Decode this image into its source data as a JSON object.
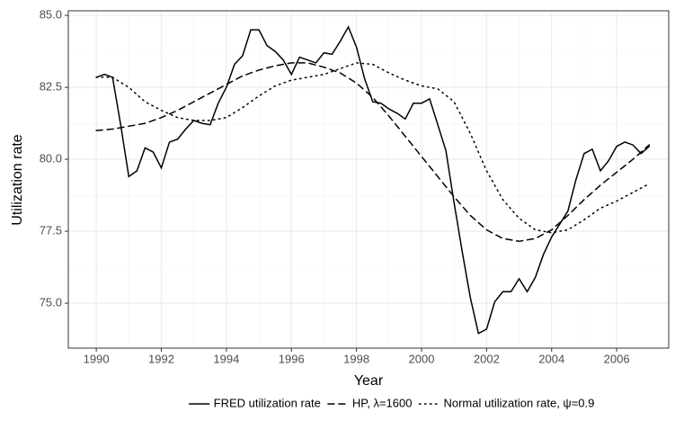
{
  "chart_data": {
    "type": "line",
    "x_label": "Year",
    "y_label": "Utilization rate",
    "xlim": [
      1989.14,
      2007.6
    ],
    "ylim": [
      73.44,
      85.16
    ],
    "xticks": [
      1990,
      1992,
      1994,
      1996,
      1998,
      2000,
      2002,
      2004,
      2006
    ],
    "yticks": [
      {
        "value": 75,
        "label": "75.0"
      },
      77.5,
      {
        "value": 80,
        "label": "80.0"
      },
      82.5,
      {
        "value": 85,
        "label": "85.0"
      }
    ],
    "grid": true,
    "legend": "bottom",
    "series": [
      {
        "name": "FRED utilization rate",
        "color": "#000000",
        "dash": "solid",
        "x": [
          1990,
          1990.25,
          1990.5,
          1990.75,
          1991,
          1991.25,
          1991.5,
          1991.75,
          1992,
          1992.25,
          1992.5,
          1992.75,
          1993,
          1993.25,
          1993.5,
          1993.75,
          1994,
          1994.25,
          1994.5,
          1994.75,
          1995,
          1995.25,
          1995.5,
          1995.75,
          1996,
          1996.25,
          1996.5,
          1996.75,
          1997,
          1997.25,
          1997.5,
          1997.75,
          1998,
          1998.25,
          1998.5,
          1998.75,
          1999,
          1999.25,
          1999.5,
          1999.75,
          2000,
          2000.25,
          2000.5,
          2000.75,
          2001,
          2001.25,
          2001.5,
          2001.75,
          2002,
          2002.25,
          2002.5,
          2002.75,
          2003,
          2003.25,
          2003.5,
          2003.75,
          2004,
          2004.25,
          2004.5,
          2004.75,
          2005,
          2005.25,
          2005.5,
          2005.75,
          2006,
          2006.25,
          2006.5,
          2006.75,
          2007
        ],
        "values": [
          82.85,
          82.95,
          82.85,
          81.2,
          79.4,
          79.6,
          80.4,
          80.25,
          79.7,
          80.6,
          80.7,
          81.05,
          81.35,
          81.25,
          81.2,
          81.95,
          82.5,
          83.3,
          83.6,
          84.5,
          84.5,
          83.95,
          83.75,
          83.45,
          82.95,
          83.55,
          83.45,
          83.35,
          83.7,
          83.65,
          84.1,
          84.6,
          83.9,
          82.8,
          82.0,
          81.95,
          81.75,
          81.6,
          81.4,
          81.95,
          81.95,
          82.1,
          81.2,
          80.3,
          78.5,
          76.8,
          75.2,
          73.95,
          74.1,
          75.05,
          75.4,
          75.4,
          75.85,
          75.4,
          75.9,
          76.7,
          77.3,
          77.75,
          78.2,
          79.3,
          80.2,
          80.35,
          79.6,
          79.95,
          80.45,
          80.6,
          80.5,
          80.2,
          80.45
        ]
      },
      {
        "name": "HP, λ=1600",
        "color": "#000000",
        "dash": "dashed",
        "x": [
          1990,
          1990.5,
          1991,
          1991.5,
          1992,
          1992.5,
          1993,
          1993.5,
          1994,
          1994.5,
          1995,
          1995.5,
          1996,
          1996.5,
          1997,
          1997.5,
          1998,
          1998.5,
          1999,
          1999.5,
          2000,
          2000.5,
          2001,
          2001.5,
          2002,
          2002.5,
          2003,
          2003.5,
          2004,
          2004.5,
          2005,
          2005.5,
          2006,
          2006.5,
          2007
        ],
        "values": [
          81.0,
          81.05,
          81.15,
          81.25,
          81.45,
          81.7,
          82.0,
          82.3,
          82.6,
          82.9,
          83.1,
          83.25,
          83.35,
          83.35,
          83.2,
          83.0,
          82.65,
          82.15,
          81.5,
          80.8,
          80.1,
          79.4,
          78.7,
          78.05,
          77.55,
          77.25,
          77.15,
          77.25,
          77.55,
          78.05,
          78.6,
          79.1,
          79.55,
          80.0,
          80.5
        ]
      },
      {
        "name": "Normal utilization rate, ψ=0.9",
        "color": "#000000",
        "dash": "dotted",
        "x": [
          1990,
          1990.5,
          1991,
          1991.5,
          1992,
          1992.5,
          1993,
          1993.5,
          1994,
          1994.5,
          1995,
          1995.5,
          1996,
          1996.5,
          1997,
          1997.5,
          1998,
          1998.5,
          1999,
          1999.5,
          2000,
          2000.5,
          2001,
          2001.5,
          2002,
          2002.5,
          2003,
          2003.5,
          2004,
          2004.5,
          2005,
          2005.5,
          2006,
          2006.5,
          2007
        ],
        "values": [
          82.85,
          82.85,
          82.5,
          82.0,
          81.7,
          81.45,
          81.35,
          81.35,
          81.45,
          81.8,
          82.2,
          82.55,
          82.75,
          82.85,
          82.95,
          83.15,
          83.35,
          83.3,
          83.0,
          82.75,
          82.55,
          82.45,
          82.0,
          80.9,
          79.6,
          78.6,
          77.95,
          77.55,
          77.45,
          77.55,
          77.9,
          78.3,
          78.55,
          78.85,
          79.15
        ]
      }
    ]
  }
}
